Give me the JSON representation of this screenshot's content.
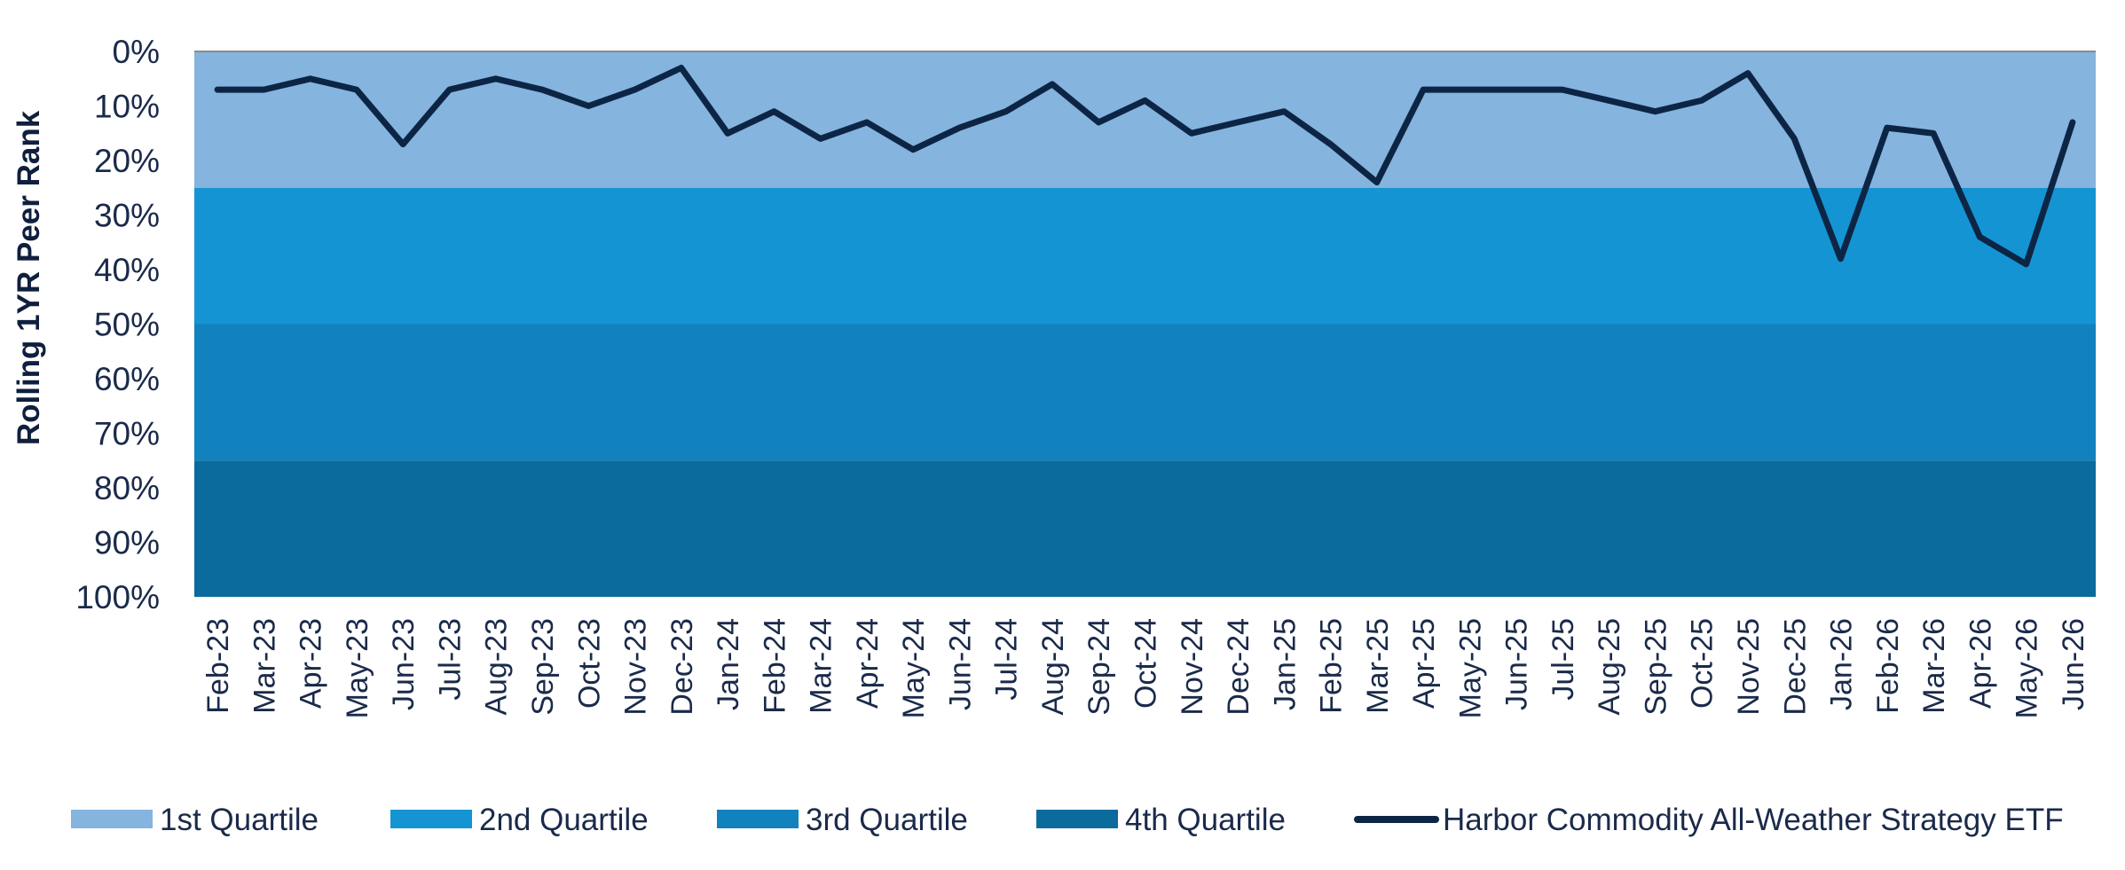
{
  "chart_data": {
    "type": "line",
    "ylabel": "Rolling 1YR Peer Rank",
    "xlabel": "",
    "ylim": [
      0,
      100
    ],
    "y_inverted": true,
    "yticks": [
      "0%",
      "10%",
      "20%",
      "30%",
      "40%",
      "50%",
      "60%",
      "70%",
      "80%",
      "90%",
      "100%"
    ],
    "grid": false,
    "legend_position": "bottom",
    "bands": [
      {
        "name": "1st Quartile",
        "from": 0,
        "to": 25,
        "color": "#85b4de"
      },
      {
        "name": "2nd Quartile",
        "from": 25,
        "to": 50,
        "color": "#1594d3"
      },
      {
        "name": "3rd Quartile",
        "from": 50,
        "to": 75,
        "color": "#1182bd"
      },
      {
        "name": "4th Quartile",
        "from": 75,
        "to": 100,
        "color": "#0a6b9c"
      }
    ],
    "categories": [
      "Feb-23",
      "Mar-23",
      "Apr-23",
      "May-23",
      "Jun-23",
      "Jul-23",
      "Aug-23",
      "Sep-23",
      "Oct-23",
      "Nov-23",
      "Dec-23",
      "Jan-24",
      "Feb-24",
      "Mar-24",
      "Apr-24",
      "May-24",
      "Jun-24",
      "Jul-24",
      "Aug-24",
      "Sep-24",
      "Oct-24",
      "Nov-24",
      "Dec-24",
      "Jan-25",
      "Feb-25",
      "Mar-25",
      "Apr-25",
      "May-25",
      "Jun-25",
      "Jul-25",
      "Aug-25",
      "Sep-25",
      "Oct-25",
      "Nov-25",
      "Dec-25",
      "Jan-26",
      "Feb-26",
      "Mar-26",
      "Apr-26",
      "May-26",
      "Jun-26"
    ],
    "series": [
      {
        "name": "Harbor Commodity All-Weather Strategy ETF",
        "color": "#0d2545",
        "values": [
          7,
          7,
          5,
          7,
          17,
          7,
          5,
          7,
          10,
          7,
          3,
          15,
          11,
          16,
          13,
          18,
          14,
          11,
          6,
          13,
          9,
          15,
          13,
          11,
          17,
          24,
          7,
          7,
          7,
          7,
          9,
          11,
          9,
          4,
          16,
          38,
          14,
          15,
          34,
          39,
          13
        ]
      }
    ]
  }
}
